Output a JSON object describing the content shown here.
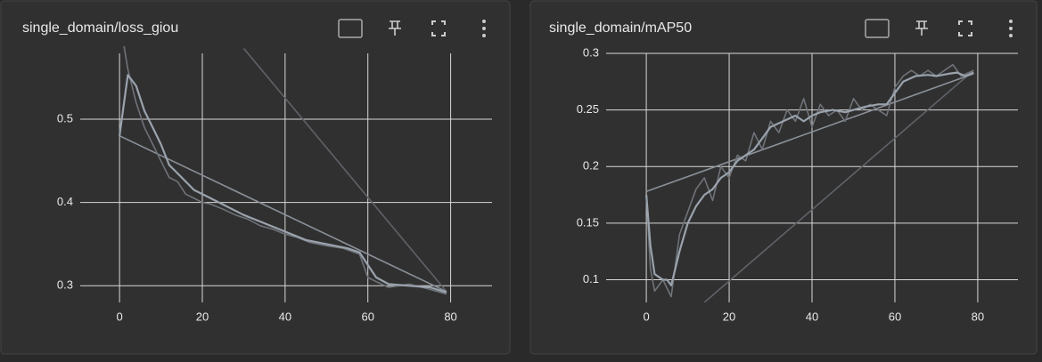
{
  "chart_data": [
    {
      "type": "line",
      "title": "single_domain/loss_giou",
      "xlim": [
        -9.5,
        90
      ],
      "xticks": [
        0,
        20,
        40,
        60,
        80
      ],
      "ylim": [
        0.28,
        0.579
      ],
      "yticks": [
        0.3,
        0.4,
        0.5
      ],
      "grid": true,
      "series": [
        {
          "color": "#5f6268",
          "x": [
            30,
            79
          ],
          "values": [
            0.585,
            0.293
          ]
        },
        {
          "color": "#8a9099",
          "x": [
            0,
            79
          ],
          "values": [
            0.48,
            0.293
          ]
        },
        {
          "color": "#6f7379",
          "x": [
            1,
            2,
            4,
            6,
            8,
            10,
            12,
            14,
            16,
            18,
            20,
            22,
            25,
            28,
            31,
            34,
            37,
            40,
            43,
            46,
            50,
            54,
            58,
            60,
            62,
            65,
            70,
            74,
            79
          ],
          "values": [
            0.59,
            0.56,
            0.52,
            0.49,
            0.47,
            0.45,
            0.43,
            0.425,
            0.41,
            0.405,
            0.4,
            0.398,
            0.392,
            0.385,
            0.38,
            0.372,
            0.368,
            0.362,
            0.358,
            0.352,
            0.348,
            0.345,
            0.338,
            0.31,
            0.305,
            0.298,
            0.302,
            0.297,
            0.29
          ]
        },
        {
          "color": "#9aa3ad",
          "x": [
            0,
            2,
            4,
            6,
            8,
            10,
            12,
            15,
            18,
            22,
            26,
            30,
            35,
            40,
            45,
            50,
            55,
            58,
            60,
            62,
            65,
            70,
            75,
            79
          ],
          "values": [
            0.48,
            0.553,
            0.54,
            0.51,
            0.49,
            0.47,
            0.445,
            0.43,
            0.415,
            0.405,
            0.395,
            0.385,
            0.375,
            0.365,
            0.355,
            0.35,
            0.345,
            0.34,
            0.325,
            0.31,
            0.302,
            0.3,
            0.298,
            0.292
          ]
        }
      ]
    },
    {
      "type": "line",
      "title": "single_domain/mAP50",
      "xlim": [
        -9.7,
        89.7
      ],
      "xticks": [
        0,
        20,
        40,
        60,
        80
      ],
      "ylim": [
        0.08,
        0.3
      ],
      "yticks": [
        0.1,
        0.15,
        0.2,
        0.25,
        0.3
      ],
      "grid": true,
      "series": [
        {
          "color": "#5f6268",
          "x": [
            14,
            79
          ],
          "values": [
            0.08,
            0.285
          ]
        },
        {
          "color": "#8a9099",
          "x": [
            0,
            79
          ],
          "values": [
            0.178,
            0.282
          ]
        },
        {
          "color": "#6f7379",
          "x": [
            0,
            1,
            2,
            4,
            6,
            8,
            10,
            12,
            14,
            16,
            18,
            20,
            22,
            24,
            26,
            28,
            30,
            32,
            34,
            36,
            38,
            40,
            42,
            44,
            46,
            48,
            50,
            52,
            54,
            56,
            58,
            60,
            62,
            64,
            66,
            68,
            70,
            72,
            74,
            76,
            79
          ],
          "values": [
            0.175,
            0.11,
            0.09,
            0.1,
            0.085,
            0.14,
            0.16,
            0.18,
            0.19,
            0.17,
            0.2,
            0.19,
            0.21,
            0.205,
            0.23,
            0.215,
            0.24,
            0.23,
            0.25,
            0.24,
            0.26,
            0.235,
            0.255,
            0.245,
            0.25,
            0.24,
            0.26,
            0.25,
            0.255,
            0.25,
            0.245,
            0.27,
            0.28,
            0.285,
            0.28,
            0.285,
            0.28,
            0.285,
            0.29,
            0.28,
            0.285
          ]
        },
        {
          "color": "#9aa3ad",
          "x": [
            0,
            1,
            2,
            4,
            5,
            6,
            8,
            10,
            12,
            14,
            16,
            18,
            20,
            22,
            24,
            26,
            28,
            30,
            33,
            36,
            38,
            40,
            42,
            45,
            48,
            50,
            53,
            56,
            58,
            60,
            62,
            65,
            68,
            70,
            73,
            75,
            77,
            79
          ],
          "values": [
            0.175,
            0.13,
            0.105,
            0.1,
            0.1,
            0.095,
            0.125,
            0.15,
            0.165,
            0.175,
            0.18,
            0.19,
            0.195,
            0.205,
            0.21,
            0.215,
            0.225,
            0.235,
            0.24,
            0.245,
            0.24,
            0.245,
            0.248,
            0.25,
            0.248,
            0.25,
            0.253,
            0.255,
            0.255,
            0.265,
            0.275,
            0.28,
            0.281,
            0.28,
            0.282,
            0.283,
            0.28,
            0.283
          ]
        }
      ]
    }
  ]
}
